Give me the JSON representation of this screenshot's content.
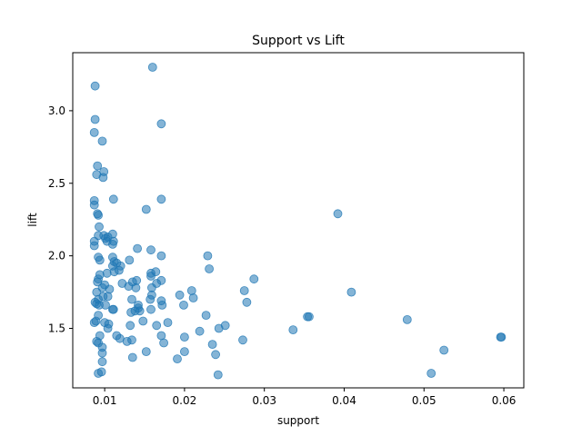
{
  "chart_data": {
    "type": "scatter",
    "title": "Support vs Lift",
    "xlabel": "support",
    "ylabel": "lift",
    "xlim": [
      0.006,
      0.0625
    ],
    "ylim": [
      1.09,
      3.4
    ],
    "xticks": [
      0.01,
      0.02,
      0.03,
      0.04,
      0.05,
      0.06
    ],
    "xtick_labels": [
      "0.01",
      "0.02",
      "0.03",
      "0.04",
      "0.05",
      "0.06"
    ],
    "yticks": [
      1.5,
      2.0,
      2.5,
      3.0
    ],
    "ytick_labels": [
      "1.5",
      "2.0",
      "2.5",
      "3.0"
    ],
    "grid": false,
    "marker_color": "#1f77b4",
    "marker_alpha": 0.55,
    "points": [
      [
        0.0088,
        3.17
      ],
      [
        0.0088,
        2.94
      ],
      [
        0.0087,
        2.85
      ],
      [
        0.0097,
        2.79
      ],
      [
        0.0091,
        2.62
      ],
      [
        0.0099,
        2.58
      ],
      [
        0.009,
        2.56
      ],
      [
        0.0098,
        2.54
      ],
      [
        0.0111,
        2.39
      ],
      [
        0.0087,
        2.38
      ],
      [
        0.0087,
        2.35
      ],
      [
        0.0091,
        2.29
      ],
      [
        0.0092,
        2.28
      ],
      [
        0.0093,
        2.2
      ],
      [
        0.0092,
        2.14
      ],
      [
        0.0099,
        2.14
      ],
      [
        0.0104,
        2.13
      ],
      [
        0.0101,
        2.12
      ],
      [
        0.011,
        2.15
      ],
      [
        0.0103,
        2.1
      ],
      [
        0.0111,
        2.1
      ],
      [
        0.011,
        2.08
      ],
      [
        0.0087,
        2.1
      ],
      [
        0.0087,
        2.07
      ],
      [
        0.0092,
        1.99
      ],
      [
        0.0094,
        1.97
      ],
      [
        0.011,
        1.99
      ],
      [
        0.0112,
        1.96
      ],
      [
        0.0115,
        1.95
      ],
      [
        0.011,
        1.93
      ],
      [
        0.012,
        1.93
      ],
      [
        0.0118,
        1.9
      ],
      [
        0.0112,
        1.89
      ],
      [
        0.0103,
        1.88
      ],
      [
        0.0094,
        1.87
      ],
      [
        0.0092,
        1.84
      ],
      [
        0.0091,
        1.82
      ],
      [
        0.01,
        1.8
      ],
      [
        0.0097,
        1.78
      ],
      [
        0.0106,
        1.77
      ],
      [
        0.009,
        1.75
      ],
      [
        0.0098,
        1.72
      ],
      [
        0.0104,
        1.72
      ],
      [
        0.0092,
        1.7
      ],
      [
        0.0088,
        1.68
      ],
      [
        0.009,
        1.67
      ],
      [
        0.0093,
        1.66
      ],
      [
        0.0101,
        1.66
      ],
      [
        0.011,
        1.63
      ],
      [
        0.0111,
        1.63
      ],
      [
        0.0092,
        1.59
      ],
      [
        0.0089,
        1.55
      ],
      [
        0.0087,
        1.54
      ],
      [
        0.01,
        1.54
      ],
      [
        0.0105,
        1.53
      ],
      [
        0.0104,
        1.5
      ],
      [
        0.0094,
        1.45
      ],
      [
        0.009,
        1.41
      ],
      [
        0.0092,
        1.4
      ],
      [
        0.0097,
        1.37
      ],
      [
        0.0097,
        1.33
      ],
      [
        0.0097,
        1.27
      ],
      [
        0.0092,
        1.19
      ],
      [
        0.0096,
        1.2
      ],
      [
        0.0115,
        1.45
      ],
      [
        0.0119,
        1.43
      ],
      [
        0.0128,
        1.41
      ],
      [
        0.0134,
        1.42
      ],
      [
        0.0132,
        1.52
      ],
      [
        0.0135,
        1.3
      ],
      [
        0.0122,
        1.81
      ],
      [
        0.013,
        1.79
      ],
      [
        0.0131,
        1.97
      ],
      [
        0.0135,
        1.82
      ],
      [
        0.014,
        1.83
      ],
      [
        0.0141,
        2.05
      ],
      [
        0.0139,
        1.78
      ],
      [
        0.0142,
        1.66
      ],
      [
        0.0134,
        1.7
      ],
      [
        0.0138,
        1.62
      ],
      [
        0.0133,
        1.61
      ],
      [
        0.0144,
        1.62
      ],
      [
        0.0142,
        1.64
      ],
      [
        0.0148,
        1.55
      ],
      [
        0.0152,
        2.32
      ],
      [
        0.0158,
        2.04
      ],
      [
        0.0158,
        1.86
      ],
      [
        0.0158,
        1.88
      ],
      [
        0.0159,
        1.78
      ],
      [
        0.016,
        3.3
      ],
      [
        0.0159,
        1.73
      ],
      [
        0.0157,
        1.7
      ],
      [
        0.0158,
        1.63
      ],
      [
        0.0164,
        1.89
      ],
      [
        0.0165,
        1.81
      ],
      [
        0.0165,
        1.52
      ],
      [
        0.0171,
        1.83
      ],
      [
        0.0171,
        1.69
      ],
      [
        0.0172,
        1.66
      ],
      [
        0.0171,
        2.39
      ],
      [
        0.0171,
        2.91
      ],
      [
        0.0171,
        2.0
      ],
      [
        0.0171,
        1.45
      ],
      [
        0.0174,
        1.4
      ],
      [
        0.0179,
        1.54
      ],
      [
        0.0152,
        1.34
      ],
      [
        0.0191,
        1.29
      ],
      [
        0.0194,
        1.73
      ],
      [
        0.0199,
        1.66
      ],
      [
        0.02,
        1.44
      ],
      [
        0.02,
        1.34
      ],
      [
        0.0209,
        1.76
      ],
      [
        0.0211,
        1.71
      ],
      [
        0.0219,
        1.48
      ],
      [
        0.0227,
        1.59
      ],
      [
        0.0229,
        2.0
      ],
      [
        0.0231,
        1.91
      ],
      [
        0.0235,
        1.39
      ],
      [
        0.0239,
        1.32
      ],
      [
        0.0242,
        1.18
      ],
      [
        0.0243,
        1.5
      ],
      [
        0.0251,
        1.52
      ],
      [
        0.0273,
        1.42
      ],
      [
        0.0275,
        1.76
      ],
      [
        0.0278,
        1.68
      ],
      [
        0.0287,
        1.84
      ],
      [
        0.0336,
        1.49
      ],
      [
        0.0354,
        1.58
      ],
      [
        0.0356,
        1.58
      ],
      [
        0.0392,
        2.29
      ],
      [
        0.0409,
        1.75
      ],
      [
        0.0479,
        1.56
      ],
      [
        0.0509,
        1.19
      ],
      [
        0.0525,
        1.35
      ],
      [
        0.0596,
        1.44
      ],
      [
        0.0597,
        1.44
      ]
    ]
  }
}
